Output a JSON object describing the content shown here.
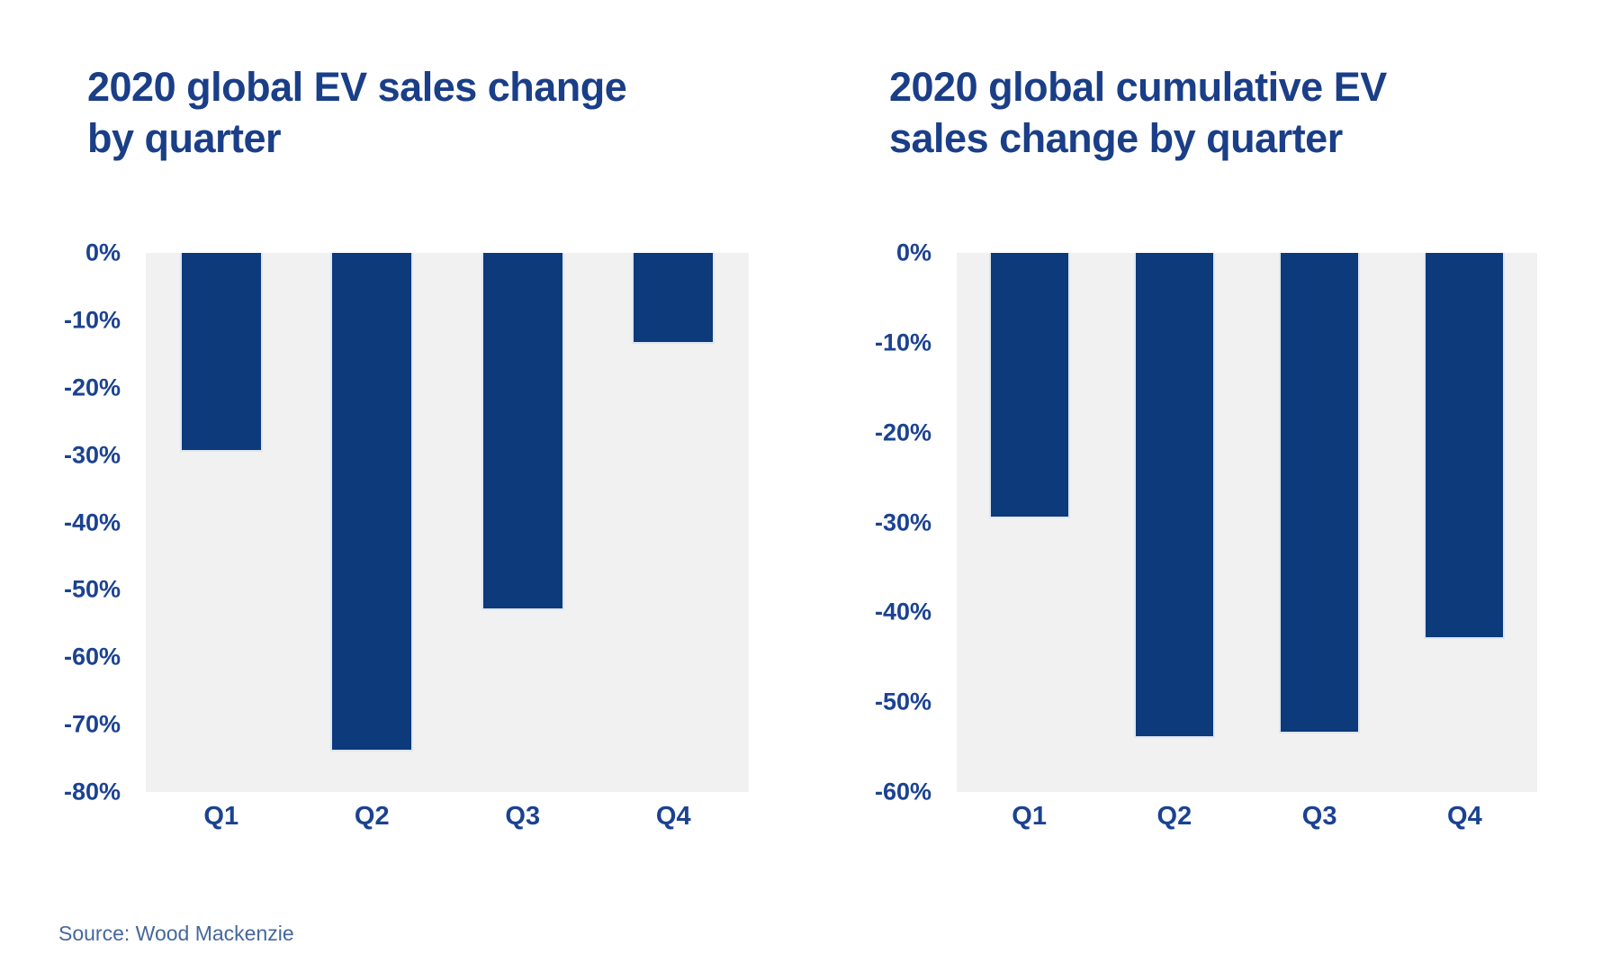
{
  "source": {
    "label": "Source: Wood Mackenzie"
  },
  "colors": {
    "bar": "#0c3a7b",
    "bar_outline": "#dfe6f1",
    "plot_background": "#f1f1f2",
    "title_text": "#1a3e87",
    "axis_text": "#1b4291",
    "source_text": "#46679b",
    "page_background": "#ffffff"
  },
  "chart_data": [
    {
      "type": "bar",
      "title": "2020 global EV sales change by quarter",
      "title_line1": "2020 global EV sales change",
      "title_line2": "by quarter",
      "categories": [
        "Q1",
        "Q2",
        "Q3",
        "Q4"
      ],
      "values": [
        -29.5,
        -74,
        -53,
        -13.5
      ],
      "unit": "%",
      "xlabel": "",
      "ylabel": "",
      "ylim": [
        -80,
        0
      ],
      "yticks": [
        0,
        -10,
        -20,
        -30,
        -40,
        -50,
        -60,
        -70,
        -80
      ],
      "ytick_labels": [
        "0%",
        "-10%",
        "-20%",
        "-30%",
        "-40%",
        "-50%",
        "-60%",
        "-70%",
        "-80%"
      ],
      "grid": false,
      "legend": "none",
      "bar_color": "#0c3a7b",
      "plot_bg": "#f1f1f2"
    },
    {
      "type": "bar",
      "title": "2020 global cumulative EV sales change by quarter",
      "title_line1": "2020 global cumulative EV",
      "title_line2": "sales change by quarter",
      "categories": [
        "Q1",
        "Q2",
        "Q3",
        "Q4"
      ],
      "values": [
        -29.5,
        -54,
        -53.5,
        -43
      ],
      "unit": "%",
      "xlabel": "",
      "ylabel": "",
      "ylim": [
        -60,
        0
      ],
      "yticks": [
        0,
        -10,
        -20,
        -30,
        -40,
        -50,
        -60
      ],
      "ytick_labels": [
        "0%",
        "-10%",
        "-20%",
        "-30%",
        "-40%",
        "-50%",
        "-60%"
      ],
      "grid": false,
      "legend": "none",
      "bar_color": "#0c3a7b",
      "plot_bg": "#f1f1f2"
    }
  ]
}
